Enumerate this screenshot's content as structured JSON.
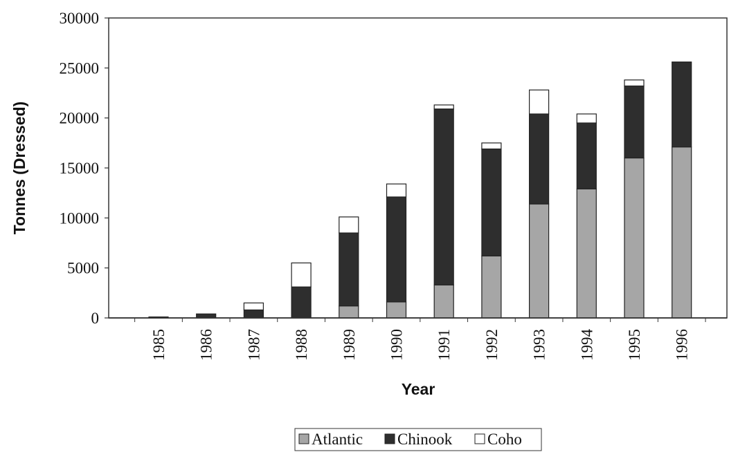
{
  "chart_data": {
    "type": "bar",
    "stacked": true,
    "xlabel": "Year",
    "ylabel": "Tonnes (Dressed)",
    "categories": [
      "1985",
      "1986",
      "1987",
      "1988",
      "1989",
      "1990",
      "1991",
      "1992",
      "1993",
      "1994",
      "1995",
      "1996"
    ],
    "ylim": [
      0,
      30000
    ],
    "yticks": [
      "0",
      "5000",
      "10000",
      "15000",
      "20000",
      "25000",
      "30000"
    ],
    "grid": false,
    "legend_position": "bottom",
    "series": [
      {
        "name": "Atlantic",
        "color": "#a6a6a6",
        "values": [
          0,
          0,
          0,
          0,
          1200,
          1600,
          3300,
          6200,
          11400,
          12900,
          16000,
          17100
        ]
      },
      {
        "name": "Chinook",
        "color": "#2e2e2e",
        "values": [
          100,
          400,
          800,
          3100,
          7300,
          10500,
          17600,
          10700,
          9000,
          6600,
          7200,
          8500
        ]
      },
      {
        "name": "Coho",
        "color": "#ffffff",
        "values": [
          0,
          0,
          700,
          2400,
          1600,
          1300,
          400,
          600,
          2400,
          900,
          600,
          0
        ]
      }
    ]
  }
}
